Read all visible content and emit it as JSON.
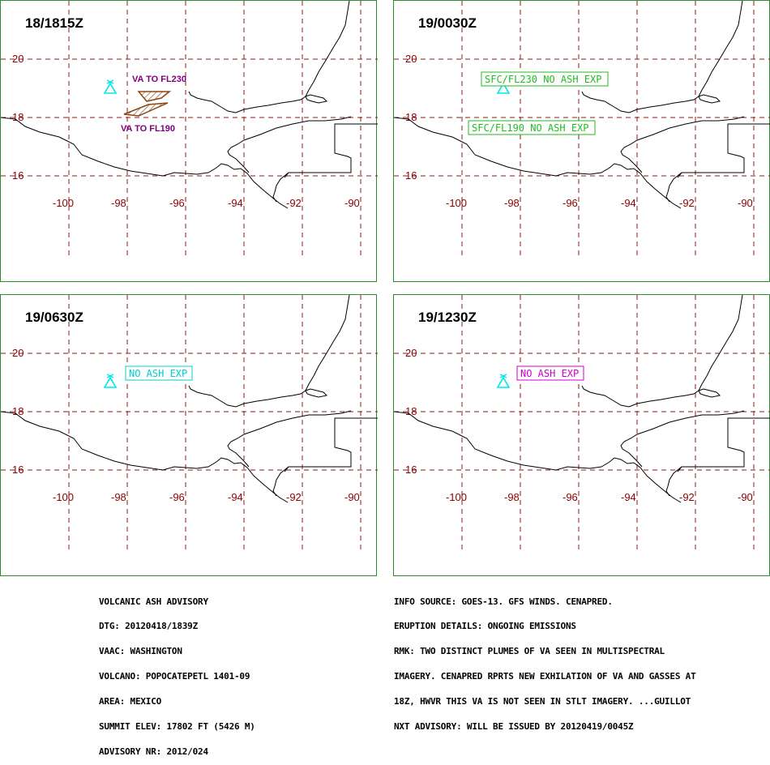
{
  "panels": [
    {
      "title": "18/1815Z",
      "labels": [
        {
          "text": "VA TO FL230",
          "style": "plume"
        },
        {
          "text": "VA TO FL190",
          "style": "plume"
        }
      ],
      "plumes": true
    },
    {
      "title": "19/0030Z",
      "labels": [
        {
          "text": "SFC/FL230 NO ASH EXP",
          "style": "green-box"
        },
        {
          "text": "SFC/FL190 NO ASH EXP",
          "style": "green-box"
        }
      ],
      "plumes": false
    },
    {
      "title": "19/0630Z",
      "labels": [
        {
          "text": "NO ASH EXP",
          "style": "cyan-box"
        }
      ],
      "plumes": false
    },
    {
      "title": "19/1230Z",
      "labels": [
        {
          "text": "NO ASH EXP",
          "style": "magenta-box"
        }
      ],
      "plumes": false
    }
  ],
  "axes": {
    "lat_labels": [
      "20",
      "18",
      "16"
    ],
    "lon_labels": [
      "-100",
      "-98",
      "-96",
      "-94",
      "-92",
      "-90"
    ]
  },
  "colors": {
    "grid": "#8b1a1a",
    "axis_label": "#8b0000",
    "plume": "#8b4513",
    "plume_label": "#800080",
    "volcano": "#00e5e5",
    "green_box": "#22bb22",
    "cyan_box": "#00cccc",
    "magenta_box": "#cc00cc",
    "panel_border": "#2e8b2e"
  },
  "advisory_left": [
    "VOLCANIC ASH ADVISORY",
    "DTG: 20120418/1839Z",
    "VAAC: WASHINGTON",
    "VOLCANO: POPOCATEPETL 1401-09",
    "AREA: MEXICO",
    "SUMMIT ELEV: 17802 FT (5426 M)",
    "ADVISORY NR: 2012/024"
  ],
  "advisory_right": [
    "INFO SOURCE: GOES-13. GFS WINDS. CENAPRED.",
    "ERUPTION DETAILS: ONGOING EMISSIONS",
    "RMK: TWO DISTINCT PLUMES OF VA SEEN IN MULTISPECTRAL",
    "IMAGERY. CENAPRED RPRTS NEW EXHILATION OF VA AND GASSES AT",
    "18Z, HWVR THIS VA IS NOT SEEN IN STLT IMAGERY. ...GUILLOT",
    "NXT ADVISORY: WILL BE ISSUED BY 20120419/0045Z"
  ]
}
